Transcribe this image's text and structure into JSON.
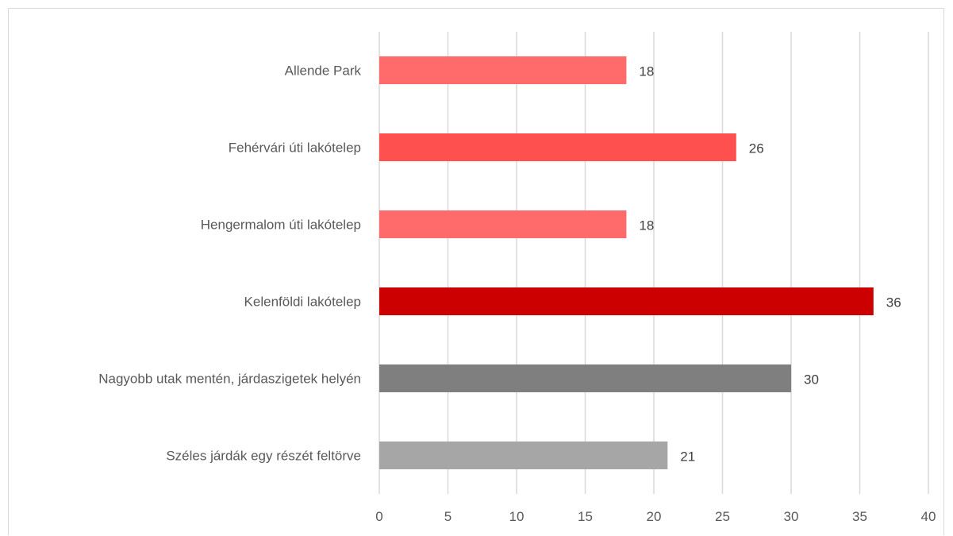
{
  "chart_data": {
    "type": "bar",
    "orientation": "horizontal",
    "title": "",
    "xlabel": "",
    "ylabel": "",
    "xlim": [
      0,
      40
    ],
    "x_ticks": [
      0,
      5,
      10,
      15,
      20,
      25,
      30,
      35,
      40
    ],
    "grid": true,
    "categories": [
      "Allende Park",
      "Fehérvári úti lakótelep",
      "Hengermalom úti lakótelep",
      "Kelenföldi lakótelep",
      "Nagyobb utak mentén, járdaszigetek helyén",
      "Széles járdák egy részét feltörve"
    ],
    "values": [
      18,
      26,
      18,
      36,
      30,
      21
    ],
    "colors": [
      "#ff6b6b",
      "#ff5050",
      "#ff6b6b",
      "#cc0000",
      "#7f7f7f",
      "#a6a6a6"
    ],
    "data_labels": true
  }
}
